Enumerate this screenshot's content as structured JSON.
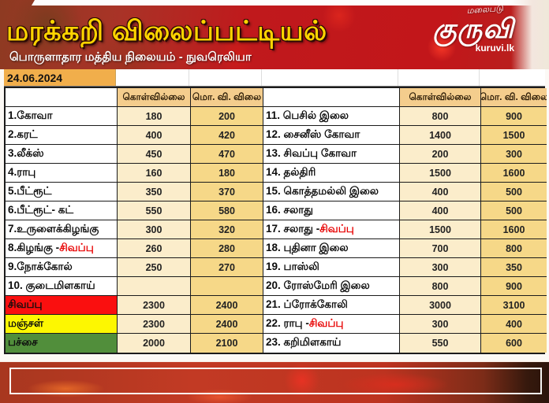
{
  "page": {
    "title": "மரக்கறி விலைப்பட்டியல்",
    "subtitle": "பொருளாதார மத்திய நிலையம் - நுவரெலியா",
    "date": "24.06.2024"
  },
  "logo": {
    "tagline": "மலைபடு",
    "name": "குருவி",
    "domain": "kuruvi.lk"
  },
  "table": {
    "headers": {
      "buy": "கொள்வில்லை",
      "sell": "மொ. வி. விலை"
    },
    "left_rows": [
      {
        "name": "1.கோவா",
        "buy": "180",
        "sell": "200"
      },
      {
        "name": "2.கரட்",
        "buy": "400",
        "sell": "420"
      },
      {
        "name": "3.லீக்ஸ்",
        "buy": "450",
        "sell": "470"
      },
      {
        "name": "4.ராபு",
        "buy": "160",
        "sell": "180"
      },
      {
        "name": "5.பீட்ரூட்",
        "buy": "350",
        "sell": "370"
      },
      {
        "name": "6.பீட்ரூட்- கட்",
        "buy": "550",
        "sell": "580"
      },
      {
        "name": "7.உருளைக்கிழங்கு",
        "buy": "300",
        "sell": "320"
      },
      {
        "name": "8.கிழங்கு - ",
        "name_red": "சிவப்பு",
        "buy": "260",
        "sell": "280"
      },
      {
        "name": "9.நோக்கோல்",
        "buy": "250",
        "sell": "270"
      },
      {
        "name": "10. குடைமிளகாய்",
        "buy": "",
        "sell": ""
      },
      {
        "name": "சிவப்பு",
        "bg": "red",
        "buy": "2300",
        "sell": "2400"
      },
      {
        "name": "மஞ்சள்",
        "bg": "yellow",
        "buy": "2300",
        "sell": "2400"
      },
      {
        "name": "பச்சை",
        "bg": "green",
        "buy": "2000",
        "sell": "2100"
      }
    ],
    "right_rows": [
      {
        "name": "11. பெசில் இலை",
        "buy": "800",
        "sell": "900"
      },
      {
        "name": "12. சைனீஸ் கோவா",
        "buy": "1400",
        "sell": "1500"
      },
      {
        "name": "13. சிவப்பு கோவா",
        "buy": "200",
        "sell": "300"
      },
      {
        "name": "14. தல்திரி",
        "buy": "1500",
        "sell": "1600"
      },
      {
        "name": "15. கொத்தமல்லி இலை",
        "buy": "400",
        "sell": "500"
      },
      {
        "name": "16. சலாது",
        "buy": "400",
        "sell": "500"
      },
      {
        "name": "17. சலாது - ",
        "name_red": "சிவப்பு",
        "buy": "1500",
        "sell": "1600"
      },
      {
        "name": "18. புதினா இலை",
        "buy": "700",
        "sell": "800"
      },
      {
        "name": "19. பாஸ்லி",
        "buy": "300",
        "sell": "350"
      },
      {
        "name": "20. ரோஸ்மேரி இலை",
        "buy": "800",
        "sell": "900"
      },
      {
        "name": "21. ப்ரோக்கோலி",
        "buy": "3000",
        "sell": "3100"
      },
      {
        "name": "22. ராபு - ",
        "name_red": "சிவப்பு",
        "buy": "300",
        "sell": "400"
      },
      {
        "name": "23. கறிமிளகாய்",
        "buy": "550",
        "sell": "600"
      }
    ]
  },
  "colors": {
    "band_red": "#c0191c",
    "title_yellow": "#ffd400",
    "date_bg": "#f1ae4b",
    "header_cell_bg": "#f4cd8d",
    "buy_col_bg": "#fbedcb",
    "sell_col_bg": "#f6d888",
    "row_red": "#fa0f0f",
    "row_yellow": "#fdf701",
    "row_green": "#518e3b",
    "highlight_word_red": "#e80000"
  }
}
